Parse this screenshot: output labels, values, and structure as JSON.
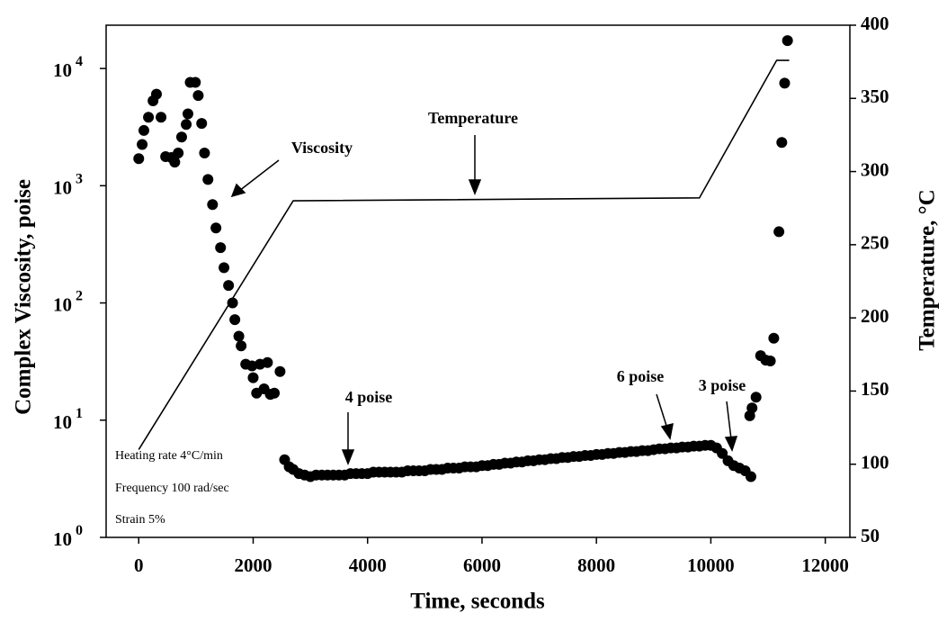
{
  "chart_data": {
    "type": "scatter",
    "xlabel": "Time, seconds",
    "ylabel": "Complex Viscosity, poise",
    "y2label": "Temperature, °C",
    "xlim": [
      -570,
      12430
    ],
    "xticks": [
      0,
      2000,
      4000,
      6000,
      8000,
      10000,
      12000
    ],
    "ylim": [
      1,
      23400
    ],
    "yscale": "log",
    "yticks": [
      {
        "value": 1,
        "label": "10 0"
      },
      {
        "value": 10,
        "label": "10 1"
      },
      {
        "value": 100,
        "label": "10 2"
      },
      {
        "value": 1000,
        "label": "10 3"
      },
      {
        "value": 10000,
        "label": "10 4"
      }
    ],
    "y2lim": [
      50,
      400
    ],
    "y2ticks": [
      50,
      100,
      150,
      200,
      250,
      300,
      350,
      400
    ],
    "series": [
      {
        "name": "Viscosity",
        "type": "scatter",
        "color": "#000000",
        "x": [
          0,
          60,
          90,
          170,
          250,
          310,
          390,
          470,
          570,
          630,
          690,
          750,
          830,
          860,
          900,
          990,
          1040,
          1100,
          1150,
          1210,
          1290,
          1350,
          1430,
          1490,
          1570,
          1640,
          1680,
          1750,
          1790,
          1870,
          1980,
          2000,
          2060,
          2120,
          2190,
          2250,
          2300,
          2370,
          2470,
          2550,
          2630,
          2700,
          2800,
          2900,
          3000,
          3100,
          3200,
          3300,
          3400,
          3500,
          3600,
          3700,
          3800,
          3900,
          4000,
          4100,
          4200,
          4300,
          4400,
          4500,
          4600,
          4700,
          4800,
          4900,
          5000,
          5100,
          5200,
          5300,
          5400,
          5500,
          5600,
          5700,
          5800,
          5900,
          6000,
          6100,
          6200,
          6300,
          6400,
          6500,
          6600,
          6700,
          6800,
          6900,
          7000,
          7100,
          7200,
          7300,
          7400,
          7500,
          7600,
          7700,
          7800,
          7900,
          8000,
          8100,
          8200,
          8300,
          8400,
          8500,
          8600,
          8700,
          8800,
          8900,
          9000,
          9100,
          9200,
          9300,
          9400,
          9500,
          9600,
          9700,
          9800,
          9900,
          10000,
          10100,
          10200,
          10300,
          10400,
          10500,
          10600,
          10700,
          10680,
          10720,
          10790,
          10870,
          10960,
          11040,
          11100,
          11190,
          11240,
          11290,
          11340
        ],
        "values": [
          1700,
          2250,
          2960,
          3840,
          5300,
          6040,
          3840,
          1770,
          1740,
          1590,
          1900,
          2600,
          3330,
          4100,
          7620,
          7620,
          5880,
          3400,
          1900,
          1130,
          690,
          436,
          296,
          200,
          141,
          100,
          72,
          52,
          43,
          30,
          29,
          23,
          17,
          30,
          18.5,
          31,
          16.6,
          17,
          26,
          4.6,
          4.0,
          3.8,
          3.5,
          3.4,
          3.3,
          3.4,
          3.4,
          3.4,
          3.4,
          3.4,
          3.4,
          3.5,
          3.5,
          3.5,
          3.5,
          3.6,
          3.6,
          3.6,
          3.6,
          3.6,
          3.6,
          3.7,
          3.7,
          3.7,
          3.7,
          3.8,
          3.8,
          3.8,
          3.9,
          3.9,
          3.9,
          4.0,
          4.0,
          4.0,
          4.1,
          4.1,
          4.2,
          4.2,
          4.3,
          4.3,
          4.4,
          4.4,
          4.5,
          4.5,
          4.6,
          4.6,
          4.7,
          4.7,
          4.8,
          4.8,
          4.9,
          4.9,
          5.0,
          5.0,
          5.1,
          5.1,
          5.2,
          5.2,
          5.3,
          5.3,
          5.4,
          5.4,
          5.5,
          5.5,
          5.6,
          5.7,
          5.7,
          5.8,
          5.8,
          5.9,
          5.9,
          6.0,
          6.0,
          6.1,
          6.1,
          5.8,
          5.2,
          4.5,
          4.1,
          3.9,
          3.7,
          3.3,
          10.9,
          12.7,
          15.7,
          35.5,
          32.5,
          32,
          50,
          405,
          2340,
          7500,
          17300
        ]
      },
      {
        "name": "Temperature",
        "type": "line",
        "axis": "y2",
        "color": "#000000",
        "x": [
          0,
          2700,
          9800,
          11150,
          11370
        ],
        "values": [
          110,
          280,
          282,
          376,
          376
        ]
      }
    ],
    "annotations": [
      "4  poise",
      "6  poise",
      "3  poise"
    ],
    "notes": [
      "Heating rate 4°C/min",
      "Frequency 100 rad/sec",
      "Strain 5%"
    ]
  }
}
